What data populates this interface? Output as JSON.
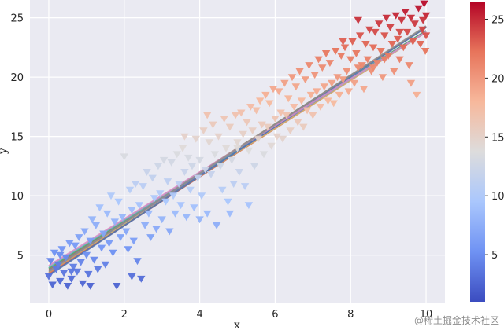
{
  "chart_data": {
    "type": "scatter",
    "title": "",
    "xlabel": "x",
    "ylabel": "y",
    "xlim": [
      -0.5,
      10.5
    ],
    "ylim": [
      1,
      26.5
    ],
    "xticks": [
      0,
      2,
      4,
      6,
      8,
      10
    ],
    "yticks": [
      5,
      10,
      15,
      20,
      25
    ],
    "grid": true,
    "background": "#eaeaf2",
    "marker": "triangle-down",
    "colormap": "coolwarm",
    "colorbar": {
      "range": [
        1,
        26.5
      ],
      "ticks": [
        5,
        10,
        15,
        20,
        25
      ],
      "stops": [
        "#3b4cc0",
        "#6f92f3",
        "#aac7fd",
        "#dddcdc",
        "#f7b89c",
        "#e7745b",
        "#b40426"
      ]
    },
    "scatter_points": [
      [
        0.0,
        3.2
      ],
      [
        0.05,
        4.5
      ],
      [
        0.1,
        2.5
      ],
      [
        0.15,
        5.2
      ],
      [
        0.2,
        3.8
      ],
      [
        0.25,
        4.2
      ],
      [
        0.3,
        2.8
      ],
      [
        0.35,
        5.5
      ],
      [
        0.4,
        3.5
      ],
      [
        0.45,
        4.8
      ],
      [
        0.5,
        2.4
      ],
      [
        0.55,
        6.0
      ],
      [
        0.6,
        3.0
      ],
      [
        0.65,
        4.0
      ],
      [
        0.7,
        5.8
      ],
      [
        0.75,
        3.6
      ],
      [
        0.8,
        6.5
      ],
      [
        0.85,
        4.4
      ],
      [
        0.9,
        2.6
      ],
      [
        0.95,
        7.0
      ],
      [
        1.0,
        5.0
      ],
      [
        1.05,
        3.4
      ],
      [
        1.1,
        6.2
      ],
      [
        1.15,
        8.0
      ],
      [
        1.2,
        4.6
      ],
      [
        1.25,
        7.5
      ],
      [
        1.3,
        3.8
      ],
      [
        1.35,
        9.0
      ],
      [
        1.4,
        5.6
      ],
      [
        1.45,
        6.8
      ],
      [
        1.5,
        4.2
      ],
      [
        1.55,
        8.5
      ],
      [
        1.6,
        6.0
      ],
      [
        1.65,
        10.0
      ],
      [
        1.7,
        5.2
      ],
      [
        1.75,
        7.8
      ],
      [
        1.8,
        2.4
      ],
      [
        1.85,
        9.5
      ],
      [
        1.9,
        6.5
      ],
      [
        1.95,
        8.2
      ],
      [
        2.0,
        13.3
      ],
      [
        2.05,
        7.0
      ],
      [
        2.1,
        5.5
      ],
      [
        2.15,
        10.5
      ],
      [
        2.2,
        8.8
      ],
      [
        2.25,
        6.2
      ],
      [
        2.3,
        11.0
      ],
      [
        2.35,
        4.5
      ],
      [
        2.4,
        9.2
      ],
      [
        2.45,
        3.0
      ],
      [
        2.5,
        10.8
      ],
      [
        2.55,
        7.5
      ],
      [
        2.6,
        12.0
      ],
      [
        2.65,
        8.5
      ],
      [
        2.7,
        6.5
      ],
      [
        2.75,
        11.5
      ],
      [
        2.8,
        9.8
      ],
      [
        2.85,
        7.2
      ],
      [
        2.9,
        12.5
      ],
      [
        2.95,
        10.2
      ],
      [
        3.0,
        8.0
      ],
      [
        3.05,
        13.0
      ],
      [
        3.1,
        9.5
      ],
      [
        3.15,
        11.2
      ],
      [
        3.2,
        7.0
      ],
      [
        3.25,
        12.8
      ],
      [
        3.3,
        10.0
      ],
      [
        3.35,
        8.5
      ],
      [
        3.4,
        13.5
      ],
      [
        3.45,
        11.0
      ],
      [
        3.5,
        9.2
      ],
      [
        3.55,
        14.0
      ],
      [
        3.6,
        12.0
      ],
      [
        3.65,
        8.2
      ],
      [
        3.7,
        13.2
      ],
      [
        3.75,
        10.5
      ],
      [
        3.8,
        12.5
      ],
      [
        3.85,
        9.0
      ],
      [
        3.9,
        14.8
      ],
      [
        3.95,
        11.5
      ],
      [
        4.0,
        13.0
      ],
      [
        4.05,
        10.0
      ],
      [
        4.1,
        15.5
      ],
      [
        4.15,
        12.2
      ],
      [
        4.2,
        8.5
      ],
      [
        4.25,
        14.5
      ],
      [
        4.3,
        11.8
      ],
      [
        4.35,
        16.0
      ],
      [
        4.4,
        13.5
      ],
      [
        4.45,
        7.5
      ],
      [
        4.5,
        15.0
      ],
      [
        4.55,
        12.5
      ],
      [
        4.6,
        10.5
      ],
      [
        4.65,
        16.5
      ],
      [
        4.7,
        14.0
      ],
      [
        4.75,
        9.5
      ],
      [
        4.8,
        15.8
      ],
      [
        4.85,
        13.0
      ],
      [
        4.9,
        11.0
      ],
      [
        4.95,
        16.8
      ],
      [
        5.0,
        14.5
      ],
      [
        5.05,
        12.0
      ],
      [
        5.1,
        17.0
      ],
      [
        5.15,
        15.2
      ],
      [
        5.2,
        10.8
      ],
      [
        5.25,
        16.2
      ],
      [
        5.3,
        13.8
      ],
      [
        5.35,
        17.5
      ],
      [
        5.4,
        15.5
      ],
      [
        5.45,
        12.5
      ],
      [
        5.5,
        17.2
      ],
      [
        5.55,
        14.8
      ],
      [
        5.6,
        18.0
      ],
      [
        5.65,
        16.0
      ],
      [
        5.7,
        13.5
      ],
      [
        5.75,
        18.5
      ],
      [
        5.8,
        15.8
      ],
      [
        5.85,
        17.8
      ],
      [
        5.9,
        14.2
      ],
      [
        5.95,
        19.0
      ],
      [
        6.0,
        16.5
      ],
      [
        6.05,
        15.0
      ],
      [
        6.1,
        18.8
      ],
      [
        6.15,
        17.0
      ],
      [
        6.2,
        14.8
      ],
      [
        6.25,
        19.5
      ],
      [
        6.3,
        16.8
      ],
      [
        6.35,
        18.2
      ],
      [
        6.4,
        15.5
      ],
      [
        6.45,
        20.0
      ],
      [
        6.5,
        17.5
      ],
      [
        6.55,
        19.2
      ],
      [
        6.6,
        16.2
      ],
      [
        6.65,
        20.5
      ],
      [
        6.7,
        18.0
      ],
      [
        6.75,
        15.8
      ],
      [
        6.8,
        19.8
      ],
      [
        6.85,
        17.2
      ],
      [
        6.9,
        21.0
      ],
      [
        6.95,
        18.5
      ],
      [
        7.0,
        16.8
      ],
      [
        7.05,
        20.2
      ],
      [
        7.1,
        18.8
      ],
      [
        7.15,
        21.5
      ],
      [
        7.2,
        17.5
      ],
      [
        7.25,
        20.8
      ],
      [
        7.3,
        19.2
      ],
      [
        7.35,
        22.0
      ],
      [
        7.4,
        18.0
      ],
      [
        7.45,
        21.2
      ],
      [
        7.5,
        19.5
      ],
      [
        7.55,
        17.8
      ],
      [
        7.6,
        22.2
      ],
      [
        7.65,
        20.0
      ],
      [
        7.7,
        18.5
      ],
      [
        7.75,
        21.8
      ],
      [
        7.8,
        19.8
      ],
      [
        7.85,
        22.5
      ],
      [
        7.9,
        20.5
      ],
      [
        7.95,
        18.8
      ],
      [
        8.0,
        21.5
      ],
      [
        8.05,
        23.0
      ],
      [
        8.1,
        19.5
      ],
      [
        8.15,
        22.0
      ],
      [
        8.2,
        20.8
      ],
      [
        8.25,
        23.5
      ],
      [
        8.3,
        21.0
      ],
      [
        8.35,
        19.0
      ],
      [
        8.4,
        22.8
      ],
      [
        8.45,
        21.5
      ],
      [
        8.5,
        24.0
      ],
      [
        8.55,
        20.5
      ],
      [
        8.6,
        22.5
      ],
      [
        8.65,
        23.8
      ],
      [
        8.7,
        21.2
      ],
      [
        8.75,
        24.5
      ],
      [
        8.8,
        22.2
      ],
      [
        8.85,
        20.0
      ],
      [
        8.9,
        23.5
      ],
      [
        8.95,
        25.0
      ],
      [
        9.0,
        21.8
      ],
      [
        9.05,
        24.2
      ],
      [
        9.1,
        22.8
      ],
      [
        9.15,
        20.5
      ],
      [
        9.2,
        25.2
      ],
      [
        9.25,
        23.2
      ],
      [
        9.3,
        21.5
      ],
      [
        9.35,
        24.8
      ],
      [
        9.4,
        22.5
      ],
      [
        9.45,
        25.5
      ],
      [
        9.5,
        23.8
      ],
      [
        9.55,
        21.0
      ],
      [
        9.6,
        25.0
      ],
      [
        9.65,
        23.0
      ],
      [
        9.7,
        24.5
      ],
      [
        9.75,
        18.5
      ],
      [
        9.8,
        25.8
      ],
      [
        9.85,
        22.8
      ],
      [
        9.9,
        24.0
      ],
      [
        9.95,
        26.2
      ],
      [
        10.0,
        23.5
      ],
      [
        10.0,
        25.2
      ],
      [
        9.98,
        22.2
      ],
      [
        9.92,
        24.8
      ],
      [
        9.6,
        19.5
      ],
      [
        9.3,
        23.8
      ],
      [
        8.9,
        21.5
      ],
      [
        8.6,
        20.8
      ],
      [
        8.2,
        24.8
      ],
      [
        7.8,
        23.0
      ],
      [
        5.0,
        14.0
      ],
      [
        4.2,
        16.8
      ],
      [
        3.6,
        15.0
      ],
      [
        5.3,
        9.2
      ],
      [
        4.8,
        8.5
      ],
      [
        4.0,
        8.0
      ],
      [
        2.2,
        3.2
      ],
      [
        1.1,
        2.4
      ],
      [
        0.6,
        3.6
      ],
      [
        0.3,
        5.0
      ]
    ],
    "regression_lines": [
      {
        "intercept": 3.4,
        "slope": 2.05,
        "color": "#c44e52"
      },
      {
        "intercept": 3.5,
        "slope": 2.03,
        "color": "#dd8452"
      },
      {
        "intercept": 3.6,
        "slope": 2.02,
        "color": "#ccb974"
      },
      {
        "intercept": 3.7,
        "slope": 2.02,
        "color": "#8172b3"
      },
      {
        "intercept": 3.8,
        "slope": 2.04,
        "color": "#937860"
      },
      {
        "intercept": 3.9,
        "slope": 2.0,
        "color": "#55a868"
      },
      {
        "intercept": 4.0,
        "slope": 1.98,
        "color": "#64b5cd"
      },
      {
        "intercept": 3.3,
        "slope": 2.09,
        "color": "#4c72b0"
      },
      {
        "intercept": 4.1,
        "slope": 1.97,
        "color": "#da8bc3"
      },
      {
        "intercept": 3.6,
        "slope": 2.07,
        "color": "#8c8c8c"
      }
    ]
  },
  "watermark": "@稀土掘金技术社区"
}
